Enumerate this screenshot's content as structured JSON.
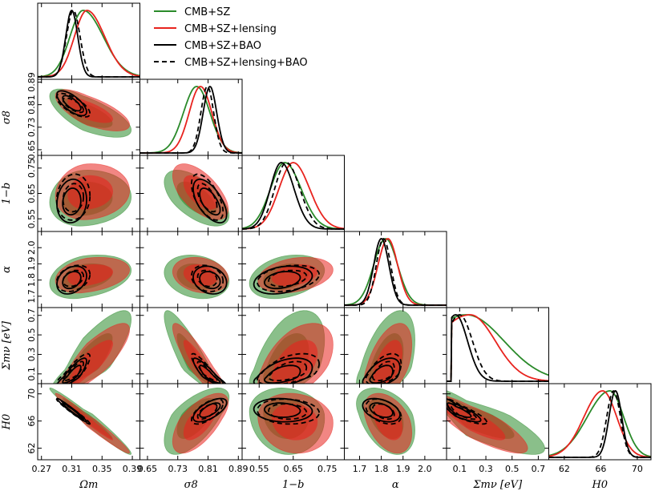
{
  "chart_data": {
    "type": "triangle-corner-plot",
    "parameters": [
      {
        "key": "om",
        "label": "Ωm",
        "range": [
          0.265,
          0.4
        ],
        "ticks": [
          0.27,
          0.31,
          0.35,
          0.39
        ],
        "tick_labels": [
          "0.27",
          "0.31",
          "0.35",
          "0.39"
        ]
      },
      {
        "key": "s8",
        "label": "σ8",
        "range": [
          0.63,
          0.9
        ],
        "ticks": [
          0.65,
          0.73,
          0.81,
          0.89
        ],
        "tick_labels": [
          "0.65",
          "0.73",
          "0.81",
          "0.89"
        ]
      },
      {
        "key": "b",
        "label": "1−b",
        "range": [
          0.5,
          0.8
        ],
        "ticks": [
          0.55,
          0.65,
          0.75
        ],
        "tick_labels": [
          "0.55",
          "0.65",
          "0.75"
        ]
      },
      {
        "key": "al",
        "label": "α",
        "range": [
          1.63,
          2.1
        ],
        "ticks": [
          1.7,
          1.8,
          1.9,
          2.0
        ],
        "tick_labels": [
          "1.7",
          "1.8",
          "1.9",
          "2.0"
        ]
      },
      {
        "key": "mnu",
        "label": "Σmν [eV]",
        "range": [
          0.0,
          0.78
        ],
        "ticks": [
          0.1,
          0.3,
          0.5,
          0.7
        ],
        "tick_labels": [
          "0.1",
          "0.3",
          "0.5",
          "0.7"
        ]
      },
      {
        "key": "h0",
        "label": "H0",
        "range": [
          60.3,
          71.5
        ],
        "ticks": [
          62,
          66,
          70
        ],
        "tick_labels": [
          "62",
          "66",
          "70"
        ]
      }
    ],
    "legend": [
      {
        "label": "CMB+SZ",
        "color": "#2a8a2a",
        "dashed": false
      },
      {
        "label": "CMB+SZ+lensing",
        "color": "#e8231e",
        "dashed": false
      },
      {
        "label": "CMB+SZ+BAO",
        "color": "#000000",
        "dashed": false
      },
      {
        "label": "CMB+SZ+lensing+BAO",
        "color": "#000000",
        "dashed": true
      }
    ],
    "series": [
      {
        "name": "CMB+SZ",
        "style": "filled",
        "color": "#2a8a2a",
        "means": [
          0.325,
          0.78,
          0.625,
          1.82,
          0.15,
          67.0
        ],
        "sigmas": [
          0.022,
          0.035,
          0.045,
          0.055,
          0.18,
          2.0
        ],
        "skew": [
          0.6,
          0,
          0.2,
          0,
          1.2,
          -0.7
        ]
      },
      {
        "name": "CMB+SZ+lensing",
        "style": "filled",
        "color": "#e8231e",
        "means": [
          0.33,
          0.79,
          0.65,
          1.83,
          0.18,
          66.2
        ],
        "sigmas": [
          0.02,
          0.03,
          0.045,
          0.045,
          0.16,
          1.8
        ],
        "skew": [
          0.5,
          0,
          0.2,
          0,
          0.4,
          -0.4
        ]
      },
      {
        "name": "CMB+SZ+BAO",
        "style": "line",
        "color": "#000000",
        "means": [
          0.31,
          0.815,
          0.615,
          1.8,
          0.07,
          67.6
        ],
        "sigmas": [
          0.008,
          0.018,
          0.035,
          0.035,
          0.06,
          0.7
        ],
        "skew": [
          0,
          0,
          0.2,
          0,
          1.0,
          0
        ]
      },
      {
        "name": "CMB+SZ+lensing+BAO",
        "style": "dashed",
        "color": "#000000",
        "means": [
          0.312,
          0.808,
          0.63,
          1.81,
          0.1,
          67.4
        ],
        "sigmas": [
          0.009,
          0.017,
          0.037,
          0.033,
          0.065,
          0.75
        ],
        "skew": [
          0,
          0,
          0.2,
          0,
          1.0,
          0
        ]
      }
    ],
    "correlation_pairs": [
      {
        "pair": [
          "om",
          "s8"
        ],
        "rho": -0.7
      },
      {
        "pair": [
          "om",
          "b"
        ],
        "rho": 0.1
      },
      {
        "pair": [
          "om",
          "al"
        ],
        "rho": 0.3
      },
      {
        "pair": [
          "om",
          "mnu"
        ],
        "rho": 0.85
      },
      {
        "pair": [
          "om",
          "h0"
        ],
        "rho": -0.98
      },
      {
        "pair": [
          "s8",
          "b"
        ],
        "rho": -0.6
      },
      {
        "pair": [
          "s8",
          "al"
        ],
        "rho": -0.2
      },
      {
        "pair": [
          "s8",
          "mnu"
        ],
        "rho": -0.9
      },
      {
        "pair": [
          "s8",
          "h0"
        ],
        "rho": 0.65
      },
      {
        "pair": [
          "b",
          "al"
        ],
        "rho": 0.3
      },
      {
        "pair": [
          "b",
          "mnu"
        ],
        "rho": 0.5
      },
      {
        "pair": [
          "b",
          "h0"
        ],
        "rho": -0.1
      },
      {
        "pair": [
          "al",
          "mnu"
        ],
        "rho": 0.5
      },
      {
        "pair": [
          "al",
          "h0"
        ],
        "rho": -0.4
      },
      {
        "pair": [
          "mnu",
          "h0"
        ],
        "rho": -0.85
      }
    ]
  }
}
